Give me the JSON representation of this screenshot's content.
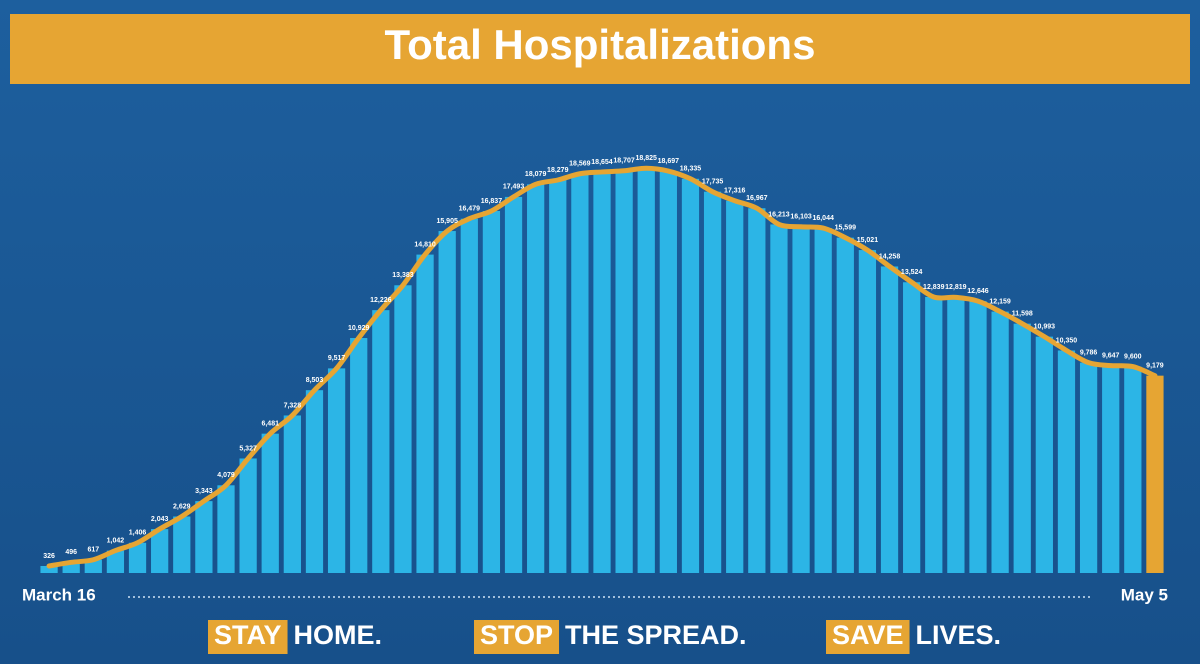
{
  "chart_data": {
    "type": "bar",
    "title": "Total Hospitalizations",
    "categories": [
      "March 16",
      null,
      null,
      null,
      null,
      null,
      null,
      null,
      null,
      null,
      null,
      null,
      null,
      null,
      null,
      null,
      null,
      null,
      null,
      null,
      null,
      null,
      null,
      null,
      null,
      null,
      null,
      null,
      null,
      null,
      null,
      null,
      null,
      null,
      null,
      null,
      null,
      null,
      null,
      null,
      null,
      null,
      null,
      null,
      null,
      null,
      null,
      null,
      null,
      null,
      "May 5"
    ],
    "values": [
      326,
      496,
      617,
      1042,
      1406,
      2043,
      2629,
      3343,
      4079,
      5327,
      6481,
      7328,
      8503,
      9517,
      10929,
      12226,
      13383,
      14810,
      15905,
      16479,
      16837,
      17493,
      18079,
      18279,
      18569,
      18654,
      18707,
      18825,
      18697,
      18335,
      17735,
      17316,
      16967,
      16213,
      16103,
      16044,
      15599,
      15021,
      14258,
      13524,
      12839,
      12819,
      12646,
      12159,
      11598,
      10993,
      10350,
      9786,
      9647,
      9600,
      9179
    ],
    "value_labels": [
      "326",
      "496",
      "617",
      "1,042",
      "1,406",
      "2,043",
      "2,629",
      "3,343",
      "4,079",
      "5,327",
      "6,481",
      "7,328",
      "8,503",
      "9,517",
      "10,929",
      "12,226",
      "13,383",
      "14,810",
      "15,905",
      "16,479",
      "16,837",
      "17,493",
      "18,079",
      "18,279",
      "18,569",
      "18,654",
      "18,707",
      "18,825",
      "18,697",
      "18,335",
      "17,735",
      "17,316",
      "16,967",
      "16,213",
      "16,103",
      "16,044",
      "15,599",
      "15,021",
      "14,258",
      "13,524",
      "12,839",
      "12,819",
      "12,646",
      "12,159",
      "11,598",
      "10,993",
      "10,350",
      "9,786",
      "9,647",
      "9,600",
      "9,179"
    ],
    "color": "#2cb5e6",
    "highlight_color": "#e6a533",
    "line_color": "#e6a533",
    "ylim": [
      0,
      22000
    ],
    "footer": [
      {
        "highlight": "STAY",
        "text": "HOME."
      },
      {
        "highlight": "STOP",
        "text": "THE SPREAD."
      },
      {
        "highlight": "SAVE",
        "text": "LIVES."
      }
    ]
  }
}
